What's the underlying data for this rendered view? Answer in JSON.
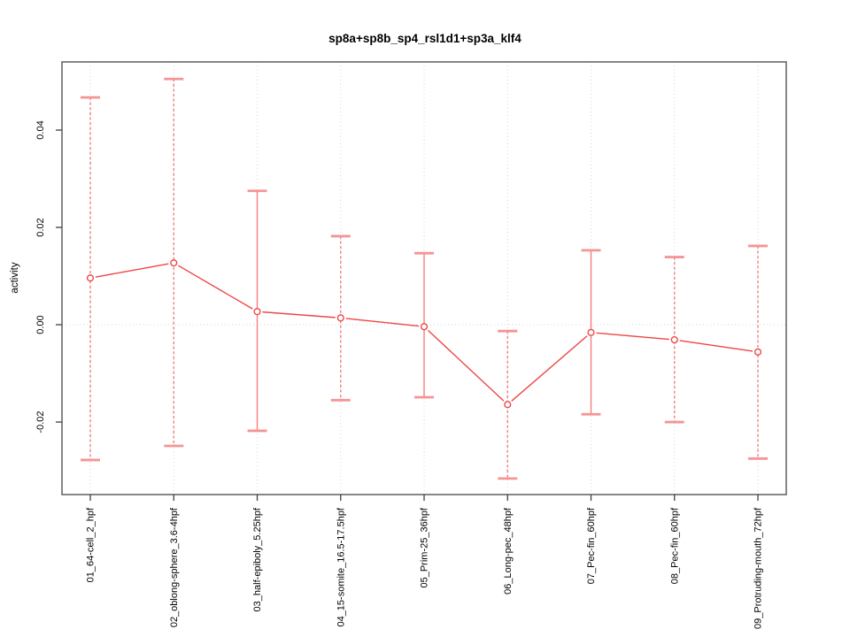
{
  "chart_data": {
    "type": "line",
    "title": "sp8a+sp8b_sp4_rsl1d1+sp3a_klf4",
    "xlabel": "",
    "ylabel": "activity",
    "categories": [
      "01_64-cell_2_hpf",
      "02_oblong-sphere_3.6-4hpf",
      "03_half-epiboly_5.25hpf",
      "04_15-somite_16.5-17.5hpf",
      "05_Prim-25_36hpf",
      "06_Long-pec_48hpf",
      "07_Pec-fin_60hpf",
      "08_Pec-fin_60hpf",
      "09_Protruding-mouth_72hpf"
    ],
    "series": [
      {
        "name": "activity",
        "values": [
          0.0096,
          0.0127,
          0.0027,
          0.0014,
          -0.0004,
          -0.0164,
          -0.0016,
          -0.0031,
          -0.0056
        ],
        "error_high": [
          0.0467,
          0.0505,
          0.0275,
          0.0182,
          0.0147,
          -0.0013,
          0.0153,
          0.0139,
          0.0162
        ],
        "error_low": [
          -0.0278,
          -0.0249,
          -0.0218,
          -0.0155,
          -0.0149,
          -0.0316,
          -0.0184,
          -0.02,
          -0.0275
        ],
        "errorbar_line_styles": [
          "dashed",
          "dashed",
          "solid",
          "dashed",
          "solid",
          "dashed",
          "solid",
          "dashed",
          "dashed"
        ]
      }
    ],
    "yticks": [
      -0.02,
      0,
      0.02,
      0.04
    ],
    "ytick_labels": [
      "-0.02",
      "0.00",
      "0.02",
      "0.04"
    ],
    "ylim": [
      -0.0349,
      0.054
    ],
    "grid": {
      "style": "dotted",
      "horizontal_at": [
        0
      ],
      "vertical_at_categories": true
    },
    "legend": "none",
    "marker": "open-circle",
    "colors": {
      "series": "#ef4646",
      "errorbar": "#f47e7e",
      "errorbar_cap": "#f59494",
      "grid": "#d6d6d6",
      "axis": "#5f5f5f",
      "tick": "#3f3f3f",
      "text": "#0a0a0a",
      "background": "#ffffff"
    }
  }
}
